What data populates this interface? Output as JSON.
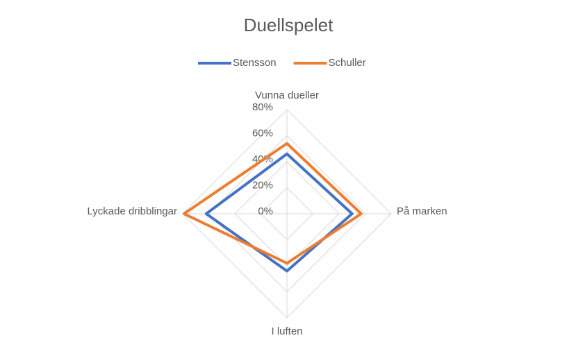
{
  "chart_data": {
    "type": "radar",
    "title": "Duellspelet",
    "categories": [
      "Vunna dueller",
      "På marken",
      "I luften",
      "Lyckade dribblingar"
    ],
    "series": [
      {
        "name": "Stensson",
        "color": "#4472c4",
        "values": [
          46,
          50,
          44,
          62
        ]
      },
      {
        "name": "Schuller",
        "color": "#ed7d31",
        "values": [
          54,
          57,
          38,
          79
        ]
      }
    ],
    "ylim": [
      0,
      80
    ],
    "yticks": [
      {
        "value": 0,
        "label": "0%"
      },
      {
        "value": 20,
        "label": "20%"
      },
      {
        "value": 40,
        "label": "40%"
      },
      {
        "value": 60,
        "label": "60%"
      },
      {
        "value": 80,
        "label": "80%"
      }
    ],
    "grid": true,
    "legend": "top"
  }
}
